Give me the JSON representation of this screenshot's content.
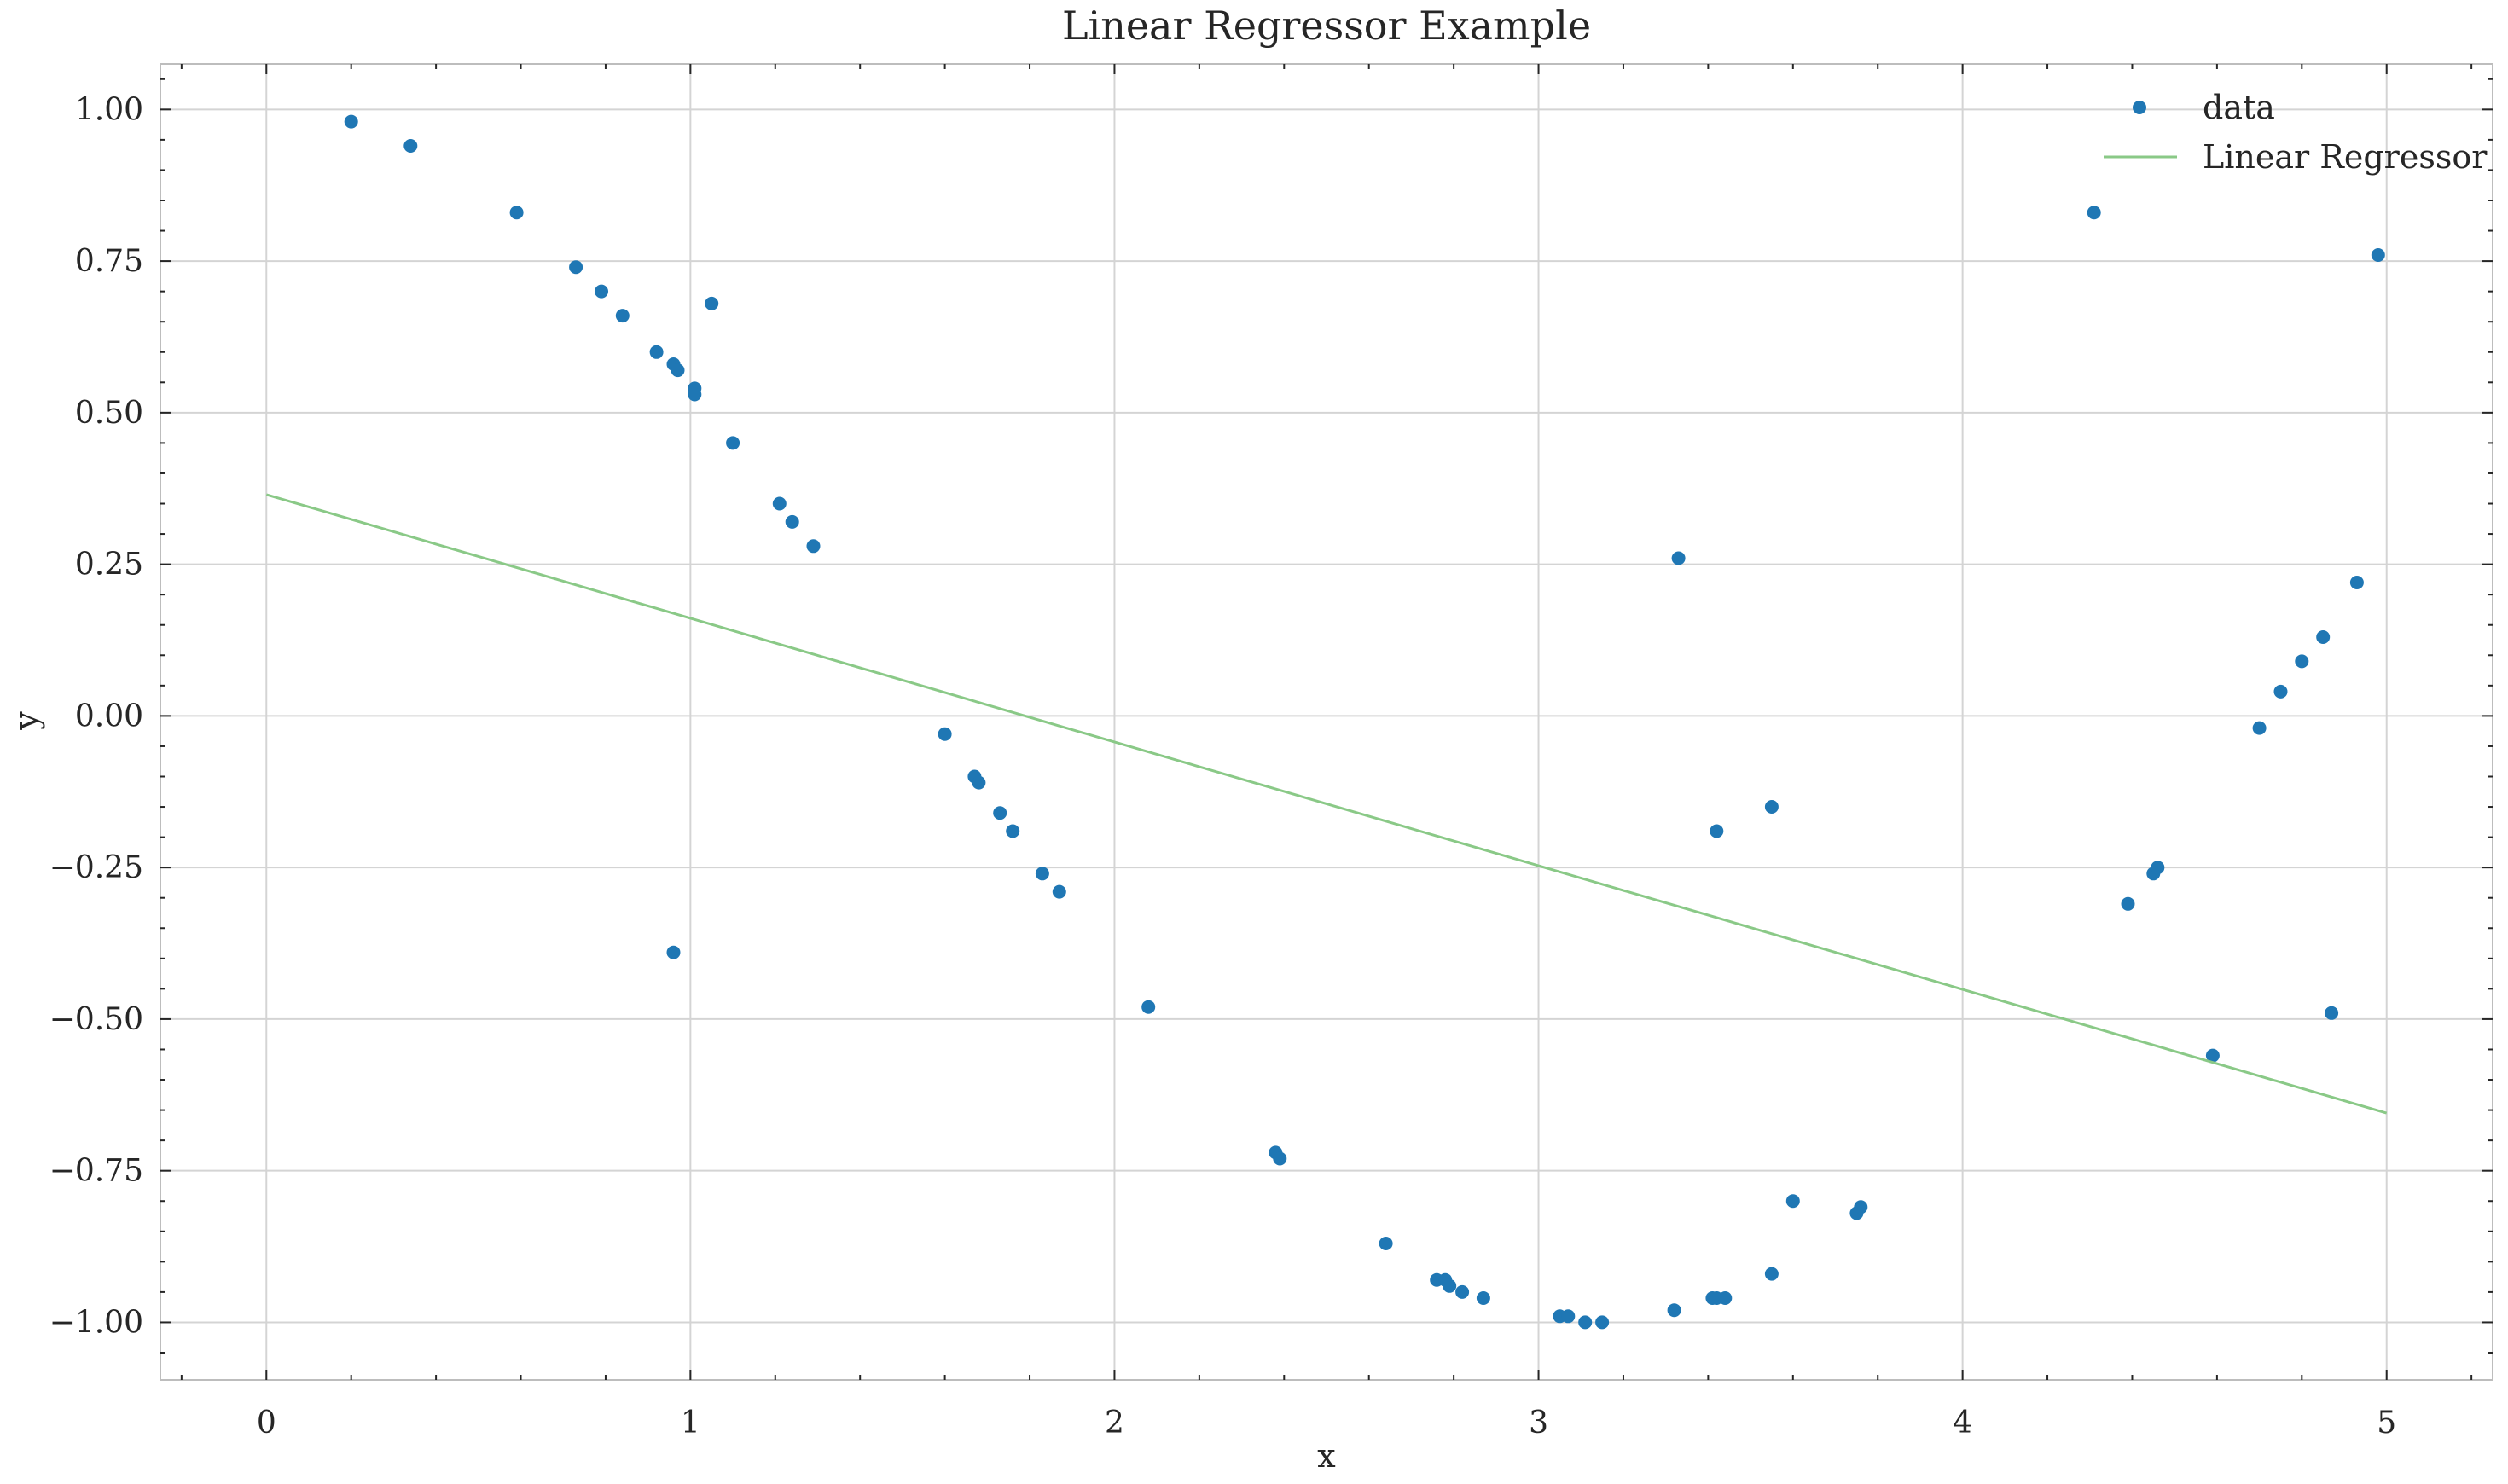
{
  "chart_data": {
    "type": "scatter",
    "title": "Linear Regressor Example",
    "xlabel": "x",
    "ylabel": "y",
    "xlim": [
      -0.25,
      5.25
    ],
    "ylim": [
      -1.095,
      1.075
    ],
    "xticks": [
      0,
      1,
      2,
      3,
      4,
      5
    ],
    "xtick_labels": [
      "0",
      "1",
      "2",
      "3",
      "4",
      "5"
    ],
    "yticks": [
      1.0,
      0.75,
      0.5,
      0.25,
      0.0,
      -0.25,
      -0.5,
      -0.75,
      -1.0
    ],
    "ytick_labels": [
      "1.00",
      "0.75",
      "0.50",
      "0.25",
      "0.00",
      "−0.25",
      "−0.50",
      "−0.75",
      "−1.00"
    ],
    "grid": true,
    "legend_position": "top-right",
    "series": [
      {
        "name": "data",
        "kind": "scatter",
        "color": "#1f77b4",
        "points": [
          [
            0.2,
            0.98
          ],
          [
            0.34,
            0.94
          ],
          [
            0.59,
            0.83
          ],
          [
            0.73,
            0.74
          ],
          [
            0.79,
            0.7
          ],
          [
            0.84,
            0.66
          ],
          [
            0.92,
            0.6
          ],
          [
            0.96,
            0.58
          ],
          [
            0.97,
            0.57
          ],
          [
            1.01,
            0.54
          ],
          [
            1.01,
            0.53
          ],
          [
            1.05,
            0.68
          ],
          [
            1.1,
            0.45
          ],
          [
            1.21,
            0.35
          ],
          [
            1.24,
            0.32
          ],
          [
            1.29,
            0.28
          ],
          [
            0.96,
            -0.39
          ],
          [
            1.6,
            -0.03
          ],
          [
            1.67,
            -0.1
          ],
          [
            1.68,
            -0.11
          ],
          [
            1.73,
            -0.16
          ],
          [
            1.76,
            -0.19
          ],
          [
            1.83,
            -0.26
          ],
          [
            1.87,
            -0.29
          ],
          [
            2.08,
            -0.48
          ],
          [
            2.38,
            -0.72
          ],
          [
            2.39,
            -0.73
          ],
          [
            2.64,
            -0.87
          ],
          [
            2.76,
            -0.93
          ],
          [
            2.78,
            -0.93
          ],
          [
            2.79,
            -0.94
          ],
          [
            2.82,
            -0.95
          ],
          [
            2.87,
            -0.96
          ],
          [
            3.05,
            -0.99
          ],
          [
            3.07,
            -0.99
          ],
          [
            3.11,
            -1.0
          ],
          [
            3.15,
            -1.0
          ],
          [
            3.32,
            -0.98
          ],
          [
            3.41,
            -0.96
          ],
          [
            3.42,
            -0.96
          ],
          [
            3.44,
            -0.96
          ],
          [
            3.55,
            -0.92
          ],
          [
            3.6,
            -0.8
          ],
          [
            3.75,
            -0.82
          ],
          [
            3.76,
            -0.81
          ],
          [
            3.33,
            0.26
          ],
          [
            3.42,
            -0.19
          ],
          [
            3.55,
            -0.15
          ],
          [
            4.31,
            0.83
          ],
          [
            4.39,
            -0.31
          ],
          [
            4.45,
            -0.26
          ],
          [
            4.46,
            -0.25
          ],
          [
            4.59,
            -0.56
          ],
          [
            4.7,
            -0.02
          ],
          [
            4.75,
            0.04
          ],
          [
            4.8,
            0.09
          ],
          [
            4.85,
            0.13
          ],
          [
            4.87,
            -0.49
          ],
          [
            4.93,
            0.22
          ],
          [
            4.98,
            0.76
          ]
        ]
      },
      {
        "name": "Linear Regressor",
        "kind": "line",
        "color": "#8ac987",
        "points": [
          [
            0,
            0.365
          ],
          [
            5,
            -0.655
          ]
        ]
      }
    ]
  }
}
